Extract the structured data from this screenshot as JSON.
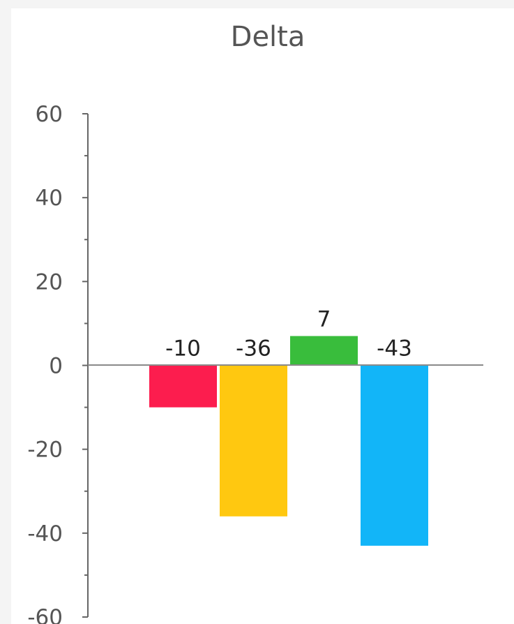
{
  "chart_data": {
    "type": "bar",
    "title": "Delta",
    "xlabel": "",
    "ylabel": "",
    "categories": [
      "",
      "",
      "",
      ""
    ],
    "values": [
      -10,
      -36,
      7,
      -43
    ],
    "colors": [
      "#fc1d4e",
      "#ffc810",
      "#39bd3c",
      "#12b5f8"
    ],
    "data_labels": [
      "-10",
      "-36",
      "7",
      "-43"
    ],
    "ylim": [
      -60,
      60
    ],
    "yticks": [
      60,
      40,
      20,
      0,
      -20,
      -40,
      -60
    ],
    "ytick_labels": [
      "60",
      "40",
      "20",
      "0",
      "-20",
      "-40",
      "-60"
    ],
    "grid": false,
    "legend": "none"
  }
}
